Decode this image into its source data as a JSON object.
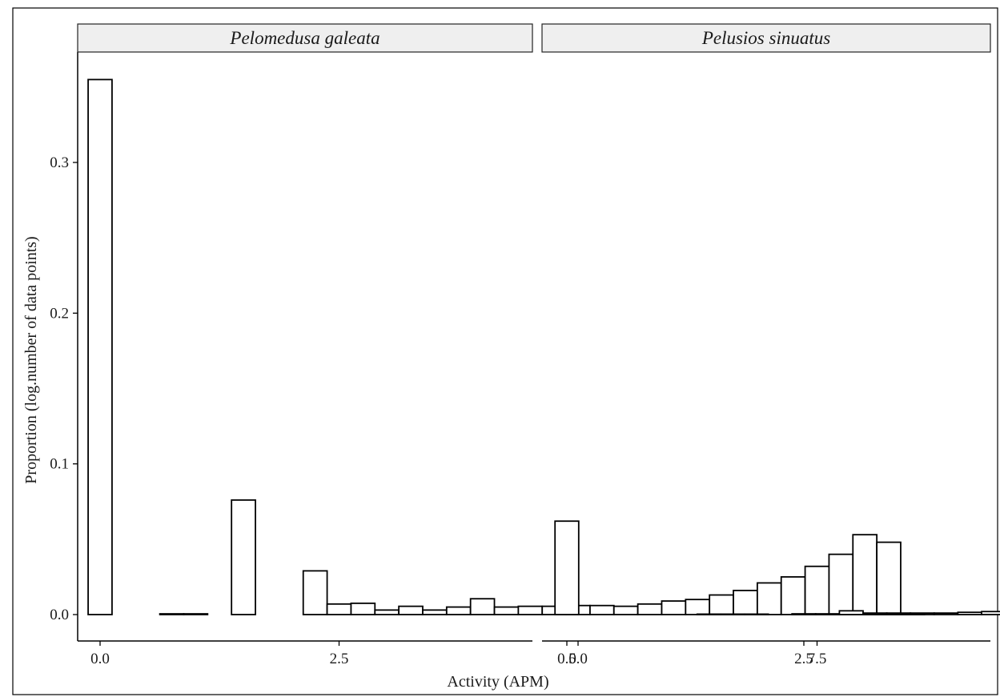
{
  "chart_data": {
    "type": "bar",
    "subtype": "faceted-histogram",
    "xlabel": "Activity (APM)",
    "ylabel": "Proportion (log.number of data points)",
    "ylim": [
      -0.015,
      0.37
    ],
    "yticks": [
      0.0,
      0.1,
      0.2,
      0.3
    ],
    "ytick_labels": [
      "0.0",
      "0.1",
      "0.2",
      "0.3"
    ],
    "xlim": [
      -0.5,
      9.0
    ],
    "xticks": [
      0.0,
      2.5,
      5.0,
      7.5
    ],
    "xtick_labels": [
      "0.0",
      "2.5",
      "5.0",
      "7.5"
    ],
    "bin_width": 0.25,
    "grid": false,
    "colors": {
      "bar_fill": "#ffffff",
      "bar_stroke": "#000000",
      "strip_fill": "#efefef"
    },
    "panels": [
      {
        "title": "Pelomedusa galeata",
        "bins": [
          {
            "x": 0.0,
            "value": 0.355
          },
          {
            "x": 0.25,
            "value": 0.0
          },
          {
            "x": 0.5,
            "value": 0.0
          },
          {
            "x": 0.75,
            "value": 0.0005
          },
          {
            "x": 1.0,
            "value": 0.0005
          },
          {
            "x": 1.25,
            "value": 0.0
          },
          {
            "x": 1.5,
            "value": 0.076
          },
          {
            "x": 1.75,
            "value": 0.0
          },
          {
            "x": 2.0,
            "value": 0.0
          },
          {
            "x": 2.25,
            "value": 0.029
          },
          {
            "x": 2.5,
            "value": 0.007
          },
          {
            "x": 2.75,
            "value": 0.0075
          },
          {
            "x": 3.0,
            "value": 0.003
          },
          {
            "x": 3.25,
            "value": 0.0055
          },
          {
            "x": 3.5,
            "value": 0.003
          },
          {
            "x": 3.75,
            "value": 0.005
          },
          {
            "x": 4.0,
            "value": 0.0105
          },
          {
            "x": 4.25,
            "value": 0.005
          },
          {
            "x": 4.5,
            "value": 0.0055
          },
          {
            "x": 4.75,
            "value": 0.0055
          },
          {
            "x": 5.0,
            "value": 0.006
          },
          {
            "x": 5.25,
            "value": 0.006
          },
          {
            "x": 5.5,
            "value": 0.0055
          },
          {
            "x": 5.75,
            "value": 0.007
          },
          {
            "x": 6.0,
            "value": 0.009
          },
          {
            "x": 6.25,
            "value": 0.01
          },
          {
            "x": 6.5,
            "value": 0.013
          },
          {
            "x": 6.75,
            "value": 0.016
          },
          {
            "x": 7.0,
            "value": 0.021
          },
          {
            "x": 7.25,
            "value": 0.025
          },
          {
            "x": 7.5,
            "value": 0.032
          },
          {
            "x": 7.75,
            "value": 0.04
          },
          {
            "x": 8.0,
            "value": 0.053
          },
          {
            "x": 8.25,
            "value": 0.048
          },
          {
            "x": 8.5,
            "value": 0.0005
          }
        ]
      },
      {
        "title": "Pelusios sinuatus",
        "bins": [
          {
            "x": 0.0,
            "value": 0.062
          },
          {
            "x": 0.25,
            "value": 0.0
          },
          {
            "x": 0.5,
            "value": 0.0
          },
          {
            "x": 0.75,
            "value": 0.0
          },
          {
            "x": 1.0,
            "value": 0.0
          },
          {
            "x": 1.25,
            "value": 0.0
          },
          {
            "x": 1.5,
            "value": 0.0003
          },
          {
            "x": 1.75,
            "value": 0.0003
          },
          {
            "x": 2.0,
            "value": 0.0003
          },
          {
            "x": 2.25,
            "value": 0.0
          },
          {
            "x": 2.5,
            "value": 0.0005
          },
          {
            "x": 2.75,
            "value": 0.0005
          },
          {
            "x": 3.0,
            "value": 0.0025
          },
          {
            "x": 3.25,
            "value": 0.001
          },
          {
            "x": 3.5,
            "value": 0.001
          },
          {
            "x": 3.75,
            "value": 0.001
          },
          {
            "x": 4.0,
            "value": 0.001
          },
          {
            "x": 4.25,
            "value": 0.0015
          },
          {
            "x": 4.5,
            "value": 0.002
          },
          {
            "x": 4.75,
            "value": 0.003
          },
          {
            "x": 5.0,
            "value": 0.0025
          },
          {
            "x": 5.25,
            "value": 0.002
          },
          {
            "x": 5.5,
            "value": 0.0025
          },
          {
            "x": 5.75,
            "value": 0.003
          },
          {
            "x": 6.0,
            "value": 0.004
          },
          {
            "x": 6.25,
            "value": 0.0045
          },
          {
            "x": 6.5,
            "value": 0.005
          },
          {
            "x": 6.75,
            "value": 0.0055
          },
          {
            "x": 7.0,
            "value": 0.0065
          },
          {
            "x": 7.25,
            "value": 0.0075
          },
          {
            "x": 7.5,
            "value": 0.01
          },
          {
            "x": 7.75,
            "value": 0.0125
          },
          {
            "x": 8.0,
            "value": 0.014
          },
          {
            "x": 8.25,
            "value": 0.037
          },
          {
            "x": 8.5,
            "value": 0.0135
          }
        ]
      }
    ]
  }
}
